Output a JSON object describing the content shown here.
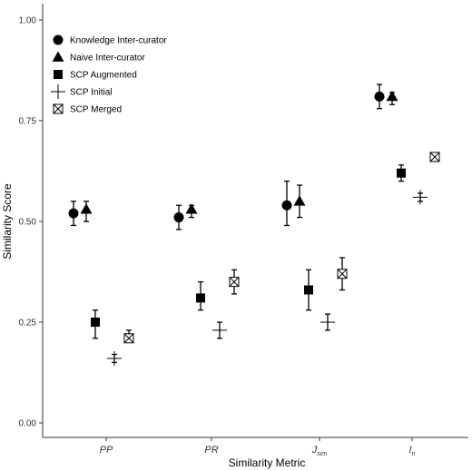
{
  "chart_data": {
    "type": "scatter",
    "xlabel": "Similarity Metric",
    "ylabel": "Similarity Score",
    "ylim": [
      0,
      1
    ],
    "y_ticks": [
      "0.00",
      "0.25",
      "0.50",
      "0.75",
      "1.00"
    ],
    "y_tick_values": [
      0,
      0.25,
      0.5,
      0.75,
      1.0
    ],
    "categories": [
      {
        "base": "PP",
        "sub": ""
      },
      {
        "base": "PR",
        "sub": ""
      },
      {
        "base": "J",
        "sub": "sim"
      },
      {
        "base": "I",
        "sub": "n"
      }
    ],
    "legend_position": "top-left",
    "grid": false,
    "series": [
      {
        "name": "Knowledge Inter-curator",
        "marker": "circle",
        "values": [
          0.52,
          0.51,
          0.54,
          0.81
        ],
        "error_low": [
          0.49,
          0.48,
          0.49,
          0.78
        ],
        "error_high": [
          0.55,
          0.54,
          0.6,
          0.84
        ]
      },
      {
        "name": "Naive Inter-curator",
        "marker": "triangle",
        "values": [
          0.53,
          0.53,
          0.55,
          0.81
        ],
        "error_low": [
          0.5,
          0.51,
          0.51,
          0.79
        ],
        "error_high": [
          0.55,
          0.54,
          0.59,
          0.82
        ]
      },
      {
        "name": "SCP Augmented",
        "marker": "square",
        "values": [
          0.25,
          0.31,
          0.33,
          0.62
        ],
        "error_low": [
          0.21,
          0.28,
          0.28,
          0.6
        ],
        "error_high": [
          0.28,
          0.35,
          0.38,
          0.64
        ]
      },
      {
        "name": "SCP Initial",
        "marker": "cross",
        "values": [
          0.16,
          0.23,
          0.25,
          0.56
        ],
        "error_low": [
          0.15,
          0.21,
          0.23,
          0.55
        ],
        "error_high": [
          0.17,
          0.25,
          0.27,
          0.57
        ]
      },
      {
        "name": "SCP Merged",
        "marker": "boxx",
        "values": [
          0.21,
          0.35,
          0.37,
          0.66
        ],
        "error_low": [
          0.2,
          0.32,
          0.33,
          0.65
        ],
        "error_high": [
          0.23,
          0.38,
          0.41,
          0.67
        ]
      }
    ],
    "colors": {
      "marker": "#000000",
      "axis": "#333333",
      "background": "#ffffff"
    }
  }
}
